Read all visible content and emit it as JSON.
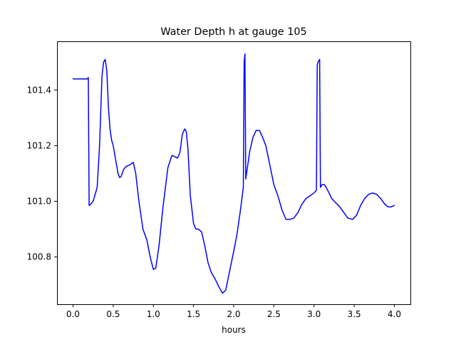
{
  "chart_data": {
    "type": "line",
    "title": "Water Depth h at gauge 105",
    "xlabel": "hours",
    "ylabel": "",
    "xlim": [
      -0.2,
      4.2
    ],
    "ylim": [
      100.63,
      101.575
    ],
    "xticks": [
      0.0,
      0.5,
      1.0,
      1.5,
      2.0,
      2.5,
      3.0,
      3.5,
      4.0
    ],
    "xtick_labels": [
      "0.0",
      "0.5",
      "1.0",
      "1.5",
      "2.0",
      "2.5",
      "3.0",
      "3.5",
      "4.0"
    ],
    "yticks": [
      100.8,
      101.0,
      101.2,
      101.4
    ],
    "ytick_labels": [
      "100.8",
      "101.0",
      "101.2",
      "101.4"
    ],
    "grid": false,
    "series": [
      {
        "color": "#0000ff",
        "x": [
          0.0,
          0.1,
          0.18,
          0.19,
          0.2,
          0.22,
          0.25,
          0.3,
          0.33,
          0.36,
          0.38,
          0.4,
          0.42,
          0.44,
          0.46,
          0.48,
          0.5,
          0.53,
          0.56,
          0.58,
          0.6,
          0.63,
          0.66,
          0.7,
          0.75,
          0.78,
          0.82,
          0.87,
          0.92,
          0.96,
          1.0,
          1.03,
          1.07,
          1.12,
          1.18,
          1.23,
          1.27,
          1.3,
          1.33,
          1.36,
          1.39,
          1.41,
          1.43,
          1.46,
          1.5,
          1.53,
          1.56,
          1.6,
          1.64,
          1.68,
          1.72,
          1.77,
          1.82,
          1.86,
          1.9,
          1.95,
          2.0,
          2.04,
          2.08,
          2.12,
          2.13,
          2.14,
          2.15,
          2.17,
          2.2,
          2.24,
          2.28,
          2.32,
          2.36,
          2.4,
          2.45,
          2.5,
          2.55,
          2.6,
          2.65,
          2.7,
          2.75,
          2.8,
          2.85,
          2.9,
          2.95,
          3.0,
          3.03,
          3.04,
          3.05,
          3.06,
          3.07,
          3.08,
          3.1,
          3.13,
          3.17,
          3.22,
          3.27,
          3.32,
          3.37,
          3.42,
          3.48,
          3.53,
          3.58,
          3.63,
          3.68,
          3.73,
          3.78,
          3.83,
          3.88,
          3.92,
          3.96,
          4.0
        ],
        "y": [
          101.44,
          101.44,
          101.44,
          101.445,
          100.985,
          100.99,
          101.0,
          101.05,
          101.2,
          101.45,
          101.5,
          101.51,
          101.47,
          101.34,
          101.26,
          101.22,
          101.2,
          101.15,
          101.1,
          101.085,
          101.09,
          101.115,
          101.125,
          101.13,
          101.14,
          101.1,
          101.0,
          100.9,
          100.86,
          100.8,
          100.755,
          100.76,
          100.84,
          100.98,
          101.12,
          101.165,
          101.16,
          101.155,
          101.175,
          101.24,
          101.26,
          101.25,
          101.19,
          101.02,
          100.92,
          100.9,
          100.9,
          100.89,
          100.84,
          100.78,
          100.745,
          100.72,
          100.69,
          100.67,
          100.68,
          100.75,
          100.82,
          100.88,
          100.96,
          101.05,
          101.5,
          101.53,
          101.08,
          101.12,
          101.18,
          101.23,
          101.255,
          101.255,
          101.23,
          101.2,
          101.13,
          101.06,
          101.02,
          100.97,
          100.935,
          100.935,
          100.94,
          100.96,
          100.99,
          101.01,
          101.02,
          101.03,
          101.04,
          101.49,
          101.5,
          101.505,
          101.51,
          101.05,
          101.06,
          101.06,
          101.04,
          101.01,
          100.995,
          100.98,
          100.96,
          100.94,
          100.935,
          100.95,
          100.985,
          101.01,
          101.025,
          101.03,
          101.025,
          101.01,
          100.99,
          100.98,
          100.98,
          100.985
        ]
      }
    ]
  }
}
